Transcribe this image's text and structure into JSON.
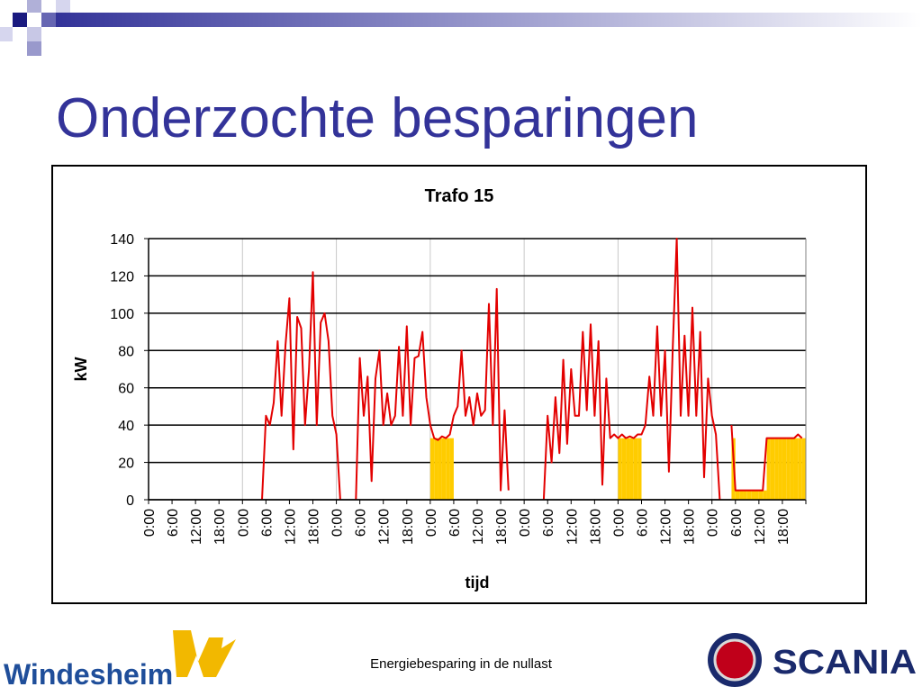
{
  "slide_title": "Onderzochte besparingen",
  "footer": "Energiebesparing in de nullast",
  "logos": {
    "left": "Windesheim",
    "right": "SCANIA"
  },
  "chart_data": {
    "type": "line",
    "title": "Trafo 15",
    "x_label": "tijd",
    "y_label": "kW",
    "xlim": [
      0,
      168
    ],
    "ylim": [
      0,
      140
    ],
    "yticks": [
      0,
      20,
      40,
      60,
      80,
      100,
      120,
      140
    ],
    "xticks": [
      {
        "value": 0,
        "label": "0:00"
      },
      {
        "value": 6,
        "label": "6:00"
      },
      {
        "value": 12,
        "label": "12:00"
      },
      {
        "value": 18,
        "label": "18:00"
      },
      {
        "value": 24,
        "label": "0:00"
      },
      {
        "value": 30,
        "label": "6:00"
      },
      {
        "value": 36,
        "label": "12:00"
      },
      {
        "value": 42,
        "label": "18:00"
      },
      {
        "value": 48,
        "label": "0:00"
      },
      {
        "value": 54,
        "label": "6:00"
      },
      {
        "value": 60,
        "label": "12:00"
      },
      {
        "value": 66,
        "label": "18:00"
      },
      {
        "value": 72,
        "label": "0:00"
      },
      {
        "value": 78,
        "label": "6:00"
      },
      {
        "value": 84,
        "label": "12:00"
      },
      {
        "value": 90,
        "label": "18:00"
      },
      {
        "value": 96,
        "label": "0:00"
      },
      {
        "value": 102,
        "label": "6:00"
      },
      {
        "value": 108,
        "label": "12:00"
      },
      {
        "value": 114,
        "label": "18:00"
      },
      {
        "value": 120,
        "label": "0:00"
      },
      {
        "value": 126,
        "label": "6:00"
      },
      {
        "value": 132,
        "label": "12:00"
      },
      {
        "value": 138,
        "label": "18:00"
      },
      {
        "value": 144,
        "label": "0:00"
      },
      {
        "value": 150,
        "label": "6:00"
      },
      {
        "value": 156,
        "label": "12:00"
      },
      {
        "value": 162,
        "label": "18:00"
      }
    ],
    "grid": true,
    "xgrid": true,
    "series": [
      {
        "kind": "bar",
        "color": "#ffcc00",
        "x": [
          72,
          73,
          74,
          75,
          76,
          77,
          120,
          121,
          122,
          123,
          124,
          125,
          149,
          150,
          151,
          152,
          153,
          154,
          155,
          156,
          157,
          158,
          159,
          160,
          161,
          162,
          163,
          164,
          165,
          166,
          167
        ],
        "values": [
          33,
          33,
          33,
          33,
          33,
          33,
          33,
          33,
          33,
          33,
          33,
          33,
          33,
          5,
          5,
          5,
          5,
          5,
          5,
          5,
          5,
          33,
          33,
          33,
          33,
          33,
          33,
          33,
          33,
          33,
          33
        ]
      },
      {
        "kind": "line",
        "color": "#e30000",
        "x": [
          29,
          30,
          31,
          32,
          33,
          34,
          35,
          36,
          37,
          38,
          39,
          40,
          41,
          42,
          43,
          44,
          45,
          46,
          47,
          48,
          49,
          50,
          51,
          52,
          53,
          54,
          55,
          56,
          57,
          58,
          59,
          60,
          61,
          62,
          63,
          64,
          65,
          66,
          67,
          68,
          69,
          70,
          71,
          72,
          73,
          74,
          75,
          76,
          77,
          78,
          79,
          80,
          81,
          82,
          83,
          84,
          85,
          86,
          87,
          88,
          89,
          90,
          91,
          92,
          93,
          94,
          95,
          96,
          97,
          98,
          99,
          100,
          101,
          102,
          103,
          104,
          105,
          106,
          107,
          108,
          109,
          110,
          111,
          112,
          113,
          114,
          115,
          116,
          117,
          118,
          119,
          120,
          121,
          122,
          123,
          124,
          125,
          126,
          127,
          128,
          129,
          130,
          131,
          132,
          133,
          134,
          135,
          136,
          137,
          138,
          139,
          140,
          141,
          142,
          143,
          144,
          145,
          146,
          147,
          148,
          149,
          150,
          151,
          152,
          153,
          154,
          155,
          156,
          157,
          158,
          159,
          160,
          161,
          162,
          163,
          164,
          165,
          166,
          167
        ],
        "values": [
          0,
          45,
          40,
          52,
          85,
          45,
          83,
          108,
          27,
          98,
          92,
          40,
          70,
          122,
          40,
          95,
          100,
          85,
          45,
          35,
          0,
          null,
          null,
          null,
          0,
          76,
          45,
          66,
          10,
          65,
          80,
          40,
          57,
          40,
          45,
          82,
          45,
          93,
          40,
          76,
          77,
          90,
          55,
          40,
          33,
          32,
          34,
          33,
          35,
          45,
          50,
          80,
          45,
          55,
          40,
          57,
          45,
          48,
          105,
          40,
          113,
          5,
          48,
          5,
          null,
          3,
          null,
          null,
          null,
          null,
          null,
          null,
          0,
          45,
          20,
          55,
          25,
          75,
          30,
          70,
          45,
          45,
          90,
          48,
          94,
          45,
          85,
          8,
          65,
          33,
          35,
          33,
          35,
          33,
          34,
          33,
          35,
          35,
          40,
          66,
          45,
          93,
          45,
          80,
          15,
          83,
          140,
          45,
          88,
          45,
          103,
          45,
          90,
          12,
          65,
          45,
          35,
          0,
          null,
          null,
          40,
          5,
          5,
          5,
          5,
          5,
          5,
          5,
          5,
          33,
          33,
          33,
          33,
          33,
          33,
          33,
          33,
          35,
          33
        ]
      }
    ]
  }
}
